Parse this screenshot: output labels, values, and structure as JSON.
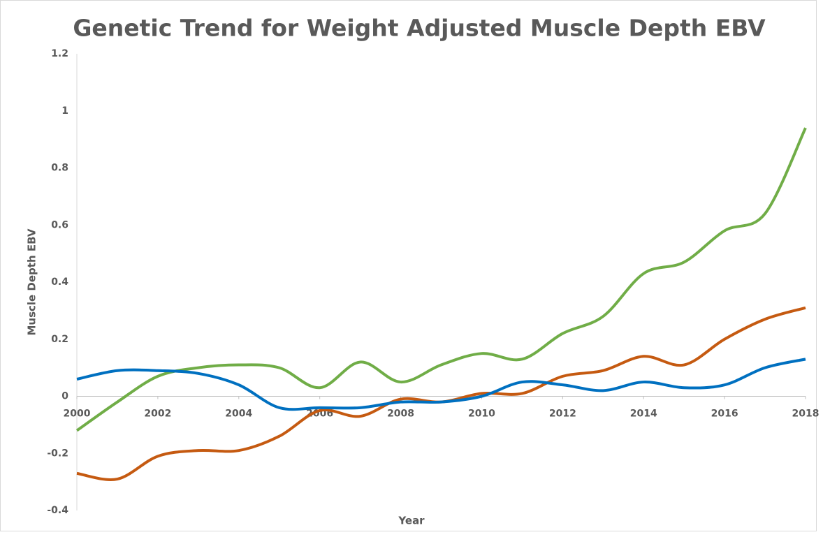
{
  "chart_data": {
    "type": "line",
    "title": "Genetic Trend for Weight Adjusted Muscle Depth EBV",
    "x_label": "Year",
    "y_label": "Muscle Depth EBV",
    "x": [
      2000,
      2001,
      2002,
      2003,
      2004,
      2005,
      2006,
      2007,
      2008,
      2009,
      2010,
      2011,
      2012,
      2013,
      2014,
      2015,
      2016,
      2017,
      2018
    ],
    "series": [
      {
        "color": "#70ad47",
        "values": [
          -0.12,
          -0.02,
          0.07,
          0.1,
          0.11,
          0.1,
          0.03,
          0.12,
          0.05,
          0.11,
          0.15,
          0.13,
          0.22,
          0.28,
          0.43,
          0.47,
          0.58,
          0.64,
          0.94
        ]
      },
      {
        "color": "#c55a11",
        "values": [
          -0.27,
          -0.29,
          -0.21,
          -0.19,
          -0.19,
          -0.14,
          -0.05,
          -0.07,
          -0.01,
          -0.02,
          0.01,
          0.01,
          0.07,
          0.09,
          0.14,
          0.11,
          0.2,
          0.27,
          0.31
        ]
      },
      {
        "color": "#0070c0",
        "values": [
          0.06,
          0.09,
          0.09,
          0.08,
          0.04,
          -0.04,
          -0.04,
          -0.04,
          -0.02,
          -0.02,
          0.0,
          0.05,
          0.04,
          0.02,
          0.05,
          0.03,
          0.04,
          0.1,
          0.13
        ]
      }
    ],
    "xlim": [
      2000,
      2018
    ],
    "xticks": [
      2000,
      2002,
      2004,
      2006,
      2008,
      2010,
      2012,
      2014,
      2016,
      2018
    ],
    "ylim": [
      -0.4,
      1.2
    ],
    "yticks": [
      -0.4,
      -0.2,
      0,
      0.2,
      0.4,
      0.6,
      0.8,
      1,
      1.2
    ],
    "grid": false
  }
}
